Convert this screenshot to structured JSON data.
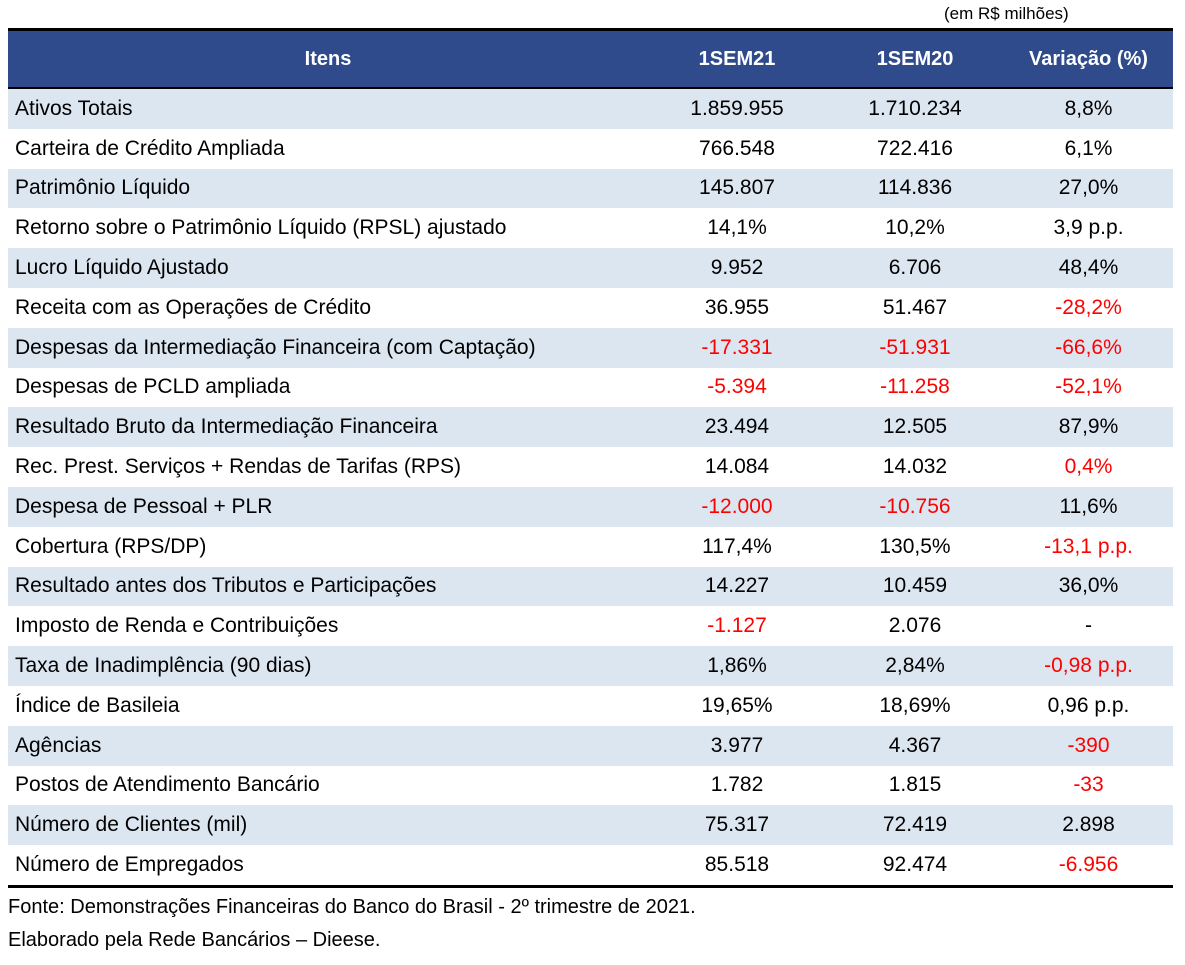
{
  "unit_note": "(em R$ milhões)",
  "headers": [
    "Itens",
    "1SEM21",
    "1SEM20",
    "Variação (%)"
  ],
  "rows": [
    {
      "item": "Ativos Totais",
      "sem21": "1.859.955",
      "sem20": "1.710.234",
      "var": "8,8%"
    },
    {
      "item": "Carteira de Crédito Ampliada",
      "sem21": "766.548",
      "sem20": "722.416",
      "var": "6,1%"
    },
    {
      "item": "Patrimônio Líquido",
      "sem21": "145.807",
      "sem20": "114.836",
      "var": "27,0%"
    },
    {
      "item": "Retorno sobre o Patrimônio Líquido (RPSL) ajustado",
      "sem21": "14,1%",
      "sem20": "10,2%",
      "var": "3,9 p.p."
    },
    {
      "item": "Lucro Líquido Ajustado",
      "sem21": "9.952",
      "sem20": "6.706",
      "var": "48,4%"
    },
    {
      "item": "Receita com as Operações de Crédito",
      "sem21": "36.955",
      "sem20": "51.467",
      "var": "-28,2%"
    },
    {
      "item": "Despesas da Intermediação Financeira (com Captação)",
      "sem21": "-17.331",
      "sem20": "-51.931",
      "var": "-66,6%"
    },
    {
      "item": "Despesas de PCLD ampliada",
      "sem21": "-5.394",
      "sem20": "-11.258",
      "var": "-52,1%"
    },
    {
      "item": "Resultado Bruto da Intermediação Financeira",
      "sem21": "23.494",
      "sem20": "12.505",
      "var": "87,9%"
    },
    {
      "item": "Rec. Prest. Serviços + Rendas de Tarifas (RPS)",
      "sem21": "14.084",
      "sem20": "14.032",
      "var": "0,4%"
    },
    {
      "item": "Despesa de Pessoal + PLR",
      "sem21": "-12.000",
      "sem20": "-10.756",
      "var": "11,6%"
    },
    {
      "item": "Cobertura (RPS/DP)",
      "sem21": "117,4%",
      "sem20": "130,5%",
      "var": "-13,1 p.p."
    },
    {
      "item": "Resultado antes dos Tributos e Participações",
      "sem21": "14.227",
      "sem20": "10.459",
      "var": "36,0%"
    },
    {
      "item": "Imposto de Renda e Contribuições",
      "sem21": "-1.127",
      "sem20": "2.076",
      "var": "-"
    },
    {
      "item": "Taxa de Inadimplência (90 dias)",
      "sem21": "1,86%",
      "sem20": "2,84%",
      "var": "-0,98 p.p."
    },
    {
      "item": "Índice de Basileia",
      "sem21": "19,65%",
      "sem20": "18,69%",
      "var": "0,96 p.p."
    },
    {
      "item": "Agências",
      "sem21": "3.977",
      "sem20": "4.367",
      "var": "-390"
    },
    {
      "item": "Postos de Atendimento Bancário",
      "sem21": "1.782",
      "sem20": "1.815",
      "var": "-33"
    },
    {
      "item": "Número de Clientes (mil)",
      "sem21": "75.317",
      "sem20": "72.419",
      "var": "2.898"
    },
    {
      "item": "Número de Empregados",
      "sem21": "85.518",
      "sem20": "92.474",
      "var": "-6.956"
    }
  ],
  "red_cells": [
    [
      5,
      3
    ],
    [
      6,
      1
    ],
    [
      6,
      2
    ],
    [
      6,
      3
    ],
    [
      7,
      1
    ],
    [
      7,
      2
    ],
    [
      7,
      3
    ],
    [
      9,
      3
    ],
    [
      10,
      1
    ],
    [
      10,
      2
    ],
    [
      11,
      3
    ],
    [
      13,
      1
    ],
    [
      14,
      3
    ],
    [
      16,
      3
    ],
    [
      17,
      3
    ],
    [
      19,
      3
    ]
  ],
  "footnotes": [
    "Fonte: Demonstrações Financeiras do Banco do Brasil - 2º trimestre de 2021.",
    "Elaborado pela Rede Bancários – Dieese."
  ],
  "colors": {
    "header_bg": "#2f4b8c",
    "shade_bg": "#dce6f1",
    "negative": "#ff0000"
  }
}
